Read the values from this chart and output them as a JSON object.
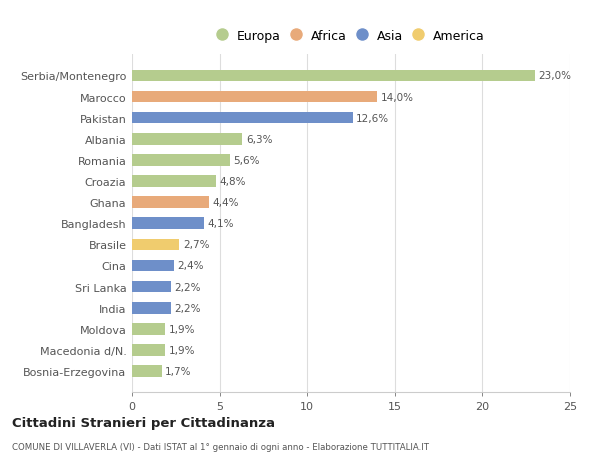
{
  "countries": [
    "Bosnia-Erzegovina",
    "Macedonia d/N.",
    "Moldova",
    "India",
    "Sri Lanka",
    "Cina",
    "Brasile",
    "Bangladesh",
    "Ghana",
    "Croazia",
    "Romania",
    "Albania",
    "Pakistan",
    "Marocco",
    "Serbia/Montenegro"
  ],
  "values": [
    1.7,
    1.9,
    1.9,
    2.2,
    2.2,
    2.4,
    2.7,
    4.1,
    4.4,
    4.8,
    5.6,
    6.3,
    12.6,
    14.0,
    23.0
  ],
  "labels": [
    "1,7%",
    "1,9%",
    "1,9%",
    "2,2%",
    "2,2%",
    "2,4%",
    "2,7%",
    "4,1%",
    "4,4%",
    "4,8%",
    "5,6%",
    "6,3%",
    "12,6%",
    "14,0%",
    "23,0%"
  ],
  "colors": [
    "#b5cc8e",
    "#b5cc8e",
    "#b5cc8e",
    "#6e8fc9",
    "#6e8fc9",
    "#6e8fc9",
    "#f0cc6e",
    "#6e8fc9",
    "#e8aa7a",
    "#b5cc8e",
    "#b5cc8e",
    "#b5cc8e",
    "#6e8fc9",
    "#e8aa7a",
    "#b5cc8e"
  ],
  "legend_labels": [
    "Europa",
    "Africa",
    "Asia",
    "America"
  ],
  "legend_colors": [
    "#b5cc8e",
    "#e8aa7a",
    "#6e8fc9",
    "#f0cc6e"
  ],
  "title": "Cittadini Stranieri per Cittadinanza",
  "subtitle": "COMUNE DI VILLAVERLA (VI) - Dati ISTAT al 1° gennaio di ogni anno - Elaborazione TUTTITALIA.IT",
  "xlim": [
    0,
    25
  ],
  "xticks": [
    0,
    5,
    10,
    15,
    20,
    25
  ],
  "background_color": "#ffffff",
  "bar_height": 0.55
}
